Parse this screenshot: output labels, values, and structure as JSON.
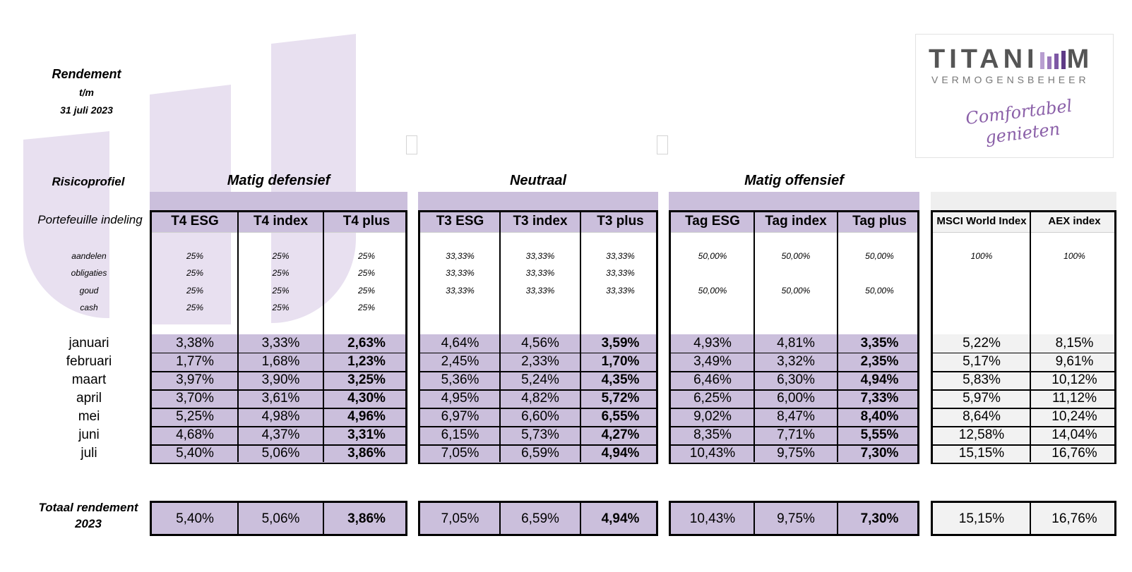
{
  "header": {
    "title": "Rendement",
    "line2": "t/m",
    "date": "31 juli 2023"
  },
  "logo": {
    "brand_left": "TITANI",
    "brand_right": "M",
    "sub": "VERMOGENSBEHEER",
    "tagline1": "Comfortabel",
    "tagline2": "genieten",
    "accent": "#8a5fa8"
  },
  "labels": {
    "risicoprofiel": "Risicoprofiel",
    "portefeuille": "Portefeuille indeling",
    "totaal1": "Totaal rendement",
    "totaal2": "2023"
  },
  "alloc_labels": [
    "aandelen",
    "obligaties",
    "goud",
    "cash"
  ],
  "months": [
    "januari",
    "februari",
    "maart",
    "april",
    "mei",
    "juni",
    "juli"
  ],
  "groups": [
    {
      "profile": "Matig defensief",
      "columns": [
        {
          "name": "T4 ESG",
          "alloc": [
            "25%",
            "25%",
            "25%",
            "25%"
          ],
          "monthly": [
            "3,38%",
            "1,77%",
            "3,97%",
            "3,70%",
            "5,25%",
            "4,68%",
            "5,40%"
          ],
          "total": "5,40%"
        },
        {
          "name": "T4 index",
          "alloc": [
            "25%",
            "25%",
            "25%",
            "25%"
          ],
          "monthly": [
            "3,33%",
            "1,68%",
            "3,90%",
            "3,61%",
            "4,98%",
            "4,37%",
            "5,06%"
          ],
          "total": "5,06%"
        },
        {
          "name": "T4 plus",
          "alloc": [
            "25%",
            "25%",
            "25%",
            "25%"
          ],
          "monthly": [
            "2,63%",
            "1,23%",
            "3,25%",
            "4,30%",
            "4,96%",
            "3,31%",
            "3,86%"
          ],
          "total": "3,86%"
        }
      ]
    },
    {
      "profile": "Neutraal",
      "columns": [
        {
          "name": "T3 ESG",
          "alloc": [
            "33,33%",
            "33,33%",
            "33,33%",
            ""
          ],
          "monthly": [
            "4,64%",
            "2,45%",
            "5,36%",
            "4,95%",
            "6,97%",
            "6,15%",
            "7,05%"
          ],
          "total": "7,05%"
        },
        {
          "name": "T3 index",
          "alloc": [
            "33,33%",
            "33,33%",
            "33,33%",
            ""
          ],
          "monthly": [
            "4,56%",
            "2,33%",
            "5,24%",
            "4,82%",
            "6,60%",
            "5,73%",
            "6,59%"
          ],
          "total": "6,59%"
        },
        {
          "name": "T3 plus",
          "alloc": [
            "33,33%",
            "33,33%",
            "33,33%",
            ""
          ],
          "monthly": [
            "3,59%",
            "1,70%",
            "4,35%",
            "5,72%",
            "6,55%",
            "4,27%",
            "4,94%"
          ],
          "total": "4,94%"
        }
      ]
    },
    {
      "profile": "Matig offensief",
      "columns": [
        {
          "name": "Tag ESG",
          "alloc": [
            "50,00%",
            "",
            "50,00%",
            ""
          ],
          "monthly": [
            "4,93%",
            "3,49%",
            "6,46%",
            "6,25%",
            "9,02%",
            "8,35%",
            "10,43%"
          ],
          "total": "10,43%"
        },
        {
          "name": "Tag index",
          "alloc": [
            "50,00%",
            "",
            "50,00%",
            ""
          ],
          "monthly": [
            "4,81%",
            "3,32%",
            "6,30%",
            "6,00%",
            "8,47%",
            "7,71%",
            "9,75%"
          ],
          "total": "9,75%"
        },
        {
          "name": "Tag plus",
          "alloc": [
            "50,00%",
            "",
            "50,00%",
            ""
          ],
          "monthly": [
            "3,35%",
            "2,35%",
            "4,94%",
            "7,33%",
            "8,40%",
            "5,55%",
            "7,30%"
          ],
          "total": "7,30%"
        }
      ]
    },
    {
      "profile": "",
      "columns": [
        {
          "name": "MSCI World Index",
          "alloc": [
            "100%",
            "",
            "",
            ""
          ],
          "monthly": [
            "5,22%",
            "5,17%",
            "5,83%",
            "5,97%",
            "8,64%",
            "12,58%",
            "15,15%"
          ],
          "total": "15,15%"
        },
        {
          "name": "AEX index",
          "alloc": [
            "100%",
            "",
            "",
            ""
          ],
          "monthly": [
            "8,15%",
            "9,61%",
            "10,12%",
            "11,12%",
            "10,24%",
            "14,04%",
            "16,76%"
          ],
          "total": "16,76%"
        }
      ]
    }
  ],
  "colors": {
    "purple_fill": "#cbbfdc",
    "watermark": "#e8e0f0",
    "benchmark_fill": "#f2f2f2"
  }
}
